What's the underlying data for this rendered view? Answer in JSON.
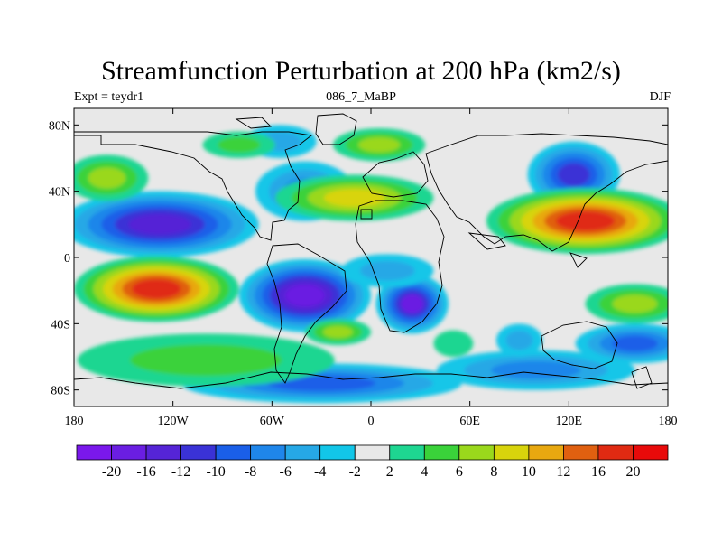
{
  "title": "Streamfunction Perturbation at 200 hPa (km2/s)",
  "left_subtitle": "Expt = teydr1",
  "center_subtitle": "086_7_MaBP",
  "right_subtitle": "DJF",
  "y_ticks": [
    "80N",
    "40N",
    "0",
    "40S",
    "80S"
  ],
  "x_ticks": [
    "180",
    "120W",
    "60W",
    "0",
    "60E",
    "120E",
    "180"
  ],
  "colorbar": {
    "labels": [
      "-20",
      "-16",
      "-12",
      "-10",
      "-8",
      "-6",
      "-4",
      "-2",
      "2",
      "4",
      "6",
      "8",
      "10",
      "12",
      "16",
      "20"
    ],
    "colors": [
      "#7a18ec",
      "#6a1ee2",
      "#5524d6",
      "#3a32d6",
      "#1a5fe8",
      "#1f86ea",
      "#26a8e6",
      "#12c6e8",
      "#e8e8e8",
      "#1ed691",
      "#3ad23a",
      "#9ad81c",
      "#d8d40c",
      "#e8a810",
      "#e06010",
      "#e02a12",
      "#e80a0a"
    ]
  },
  "chart_data": {
    "type": "heatmap",
    "title": "Streamfunction Perturbation at 200 hPa (km2/s)",
    "x_ticks": [
      "180",
      "120W",
      "60W",
      "0",
      "60E",
      "120E",
      "180"
    ],
    "y_ticks": [
      "80N",
      "40N",
      "0",
      "40S",
      "80S"
    ],
    "x_range": [
      -180,
      180
    ],
    "y_range": [
      -90,
      90
    ],
    "contour_levels": [
      -20,
      -16,
      -12,
      -10,
      -8,
      -6,
      -4,
      -2,
      2,
      4,
      6,
      8,
      10,
      12,
      16,
      20
    ],
    "approx_extrema": [
      {
        "lon": -128,
        "lat": 20,
        "value": -16
      },
      {
        "lon": -40,
        "lat": -23,
        "value": -16
      },
      {
        "lon": 25,
        "lat": -28,
        "value": -12
      },
      {
        "lon": 123,
        "lat": 50,
        "value": -10
      },
      {
        "lon": 130,
        "lat": 22,
        "value": 16
      },
      {
        "lon": -130,
        "lat": -19,
        "value": 16
      },
      {
        "lon": -10,
        "lat": 36,
        "value": 8
      },
      {
        "lon": 5,
        "lat": 68,
        "value": 6
      }
    ]
  }
}
